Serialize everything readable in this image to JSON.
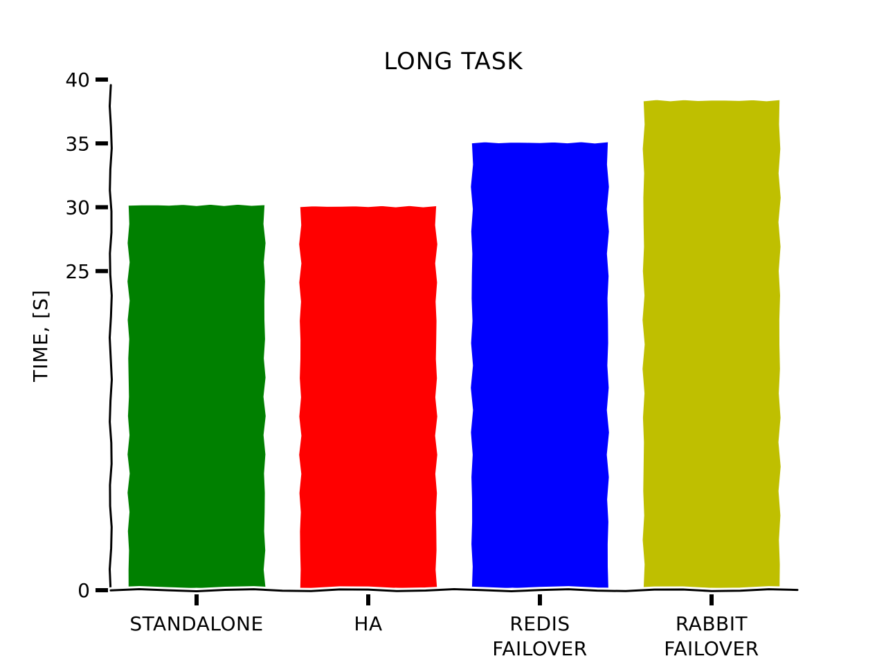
{
  "chart_data": {
    "type": "bar",
    "title": "LONG TASK",
    "xlabel": "",
    "ylabel": "TIME, [S]",
    "categories": [
      [
        "STANDALONE"
      ],
      [
        "HA"
      ],
      [
        "REDIS",
        "FAILOVER"
      ],
      [
        "RABBIT",
        "FAILOVER"
      ]
    ],
    "values": [
      30.2,
      30.1,
      35.1,
      38.4
    ],
    "colors": [
      "#008000",
      "#ff0000",
      "#0000ff",
      "#bfbf00"
    ],
    "yticks": [
      0,
      25,
      30,
      35,
      40
    ],
    "ylim": [
      0,
      40
    ],
    "grid": false,
    "legend": "none",
    "style": "xkcd"
  }
}
